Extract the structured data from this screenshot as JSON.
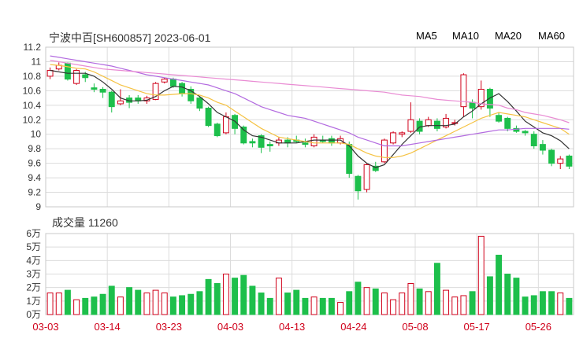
{
  "title": "宁波中百[SH600857] 2023-06-01",
  "volume_title_prefix": "成交量",
  "volume_value": "11260",
  "legend": [
    {
      "label": "MA5",
      "color": "#333333"
    },
    {
      "label": "MA10",
      "color": "#f5c242"
    },
    {
      "label": "MA20",
      "color": "#b36be0"
    },
    {
      "label": "MA60",
      "color": "#e98bd3"
    }
  ],
  "colors": {
    "up": "#d0021b",
    "down": "#1dbf4b",
    "grid": "#dcdcdc",
    "axis_text": "#333333",
    "date_text": "#d0021b"
  },
  "chart_data": [
    {
      "type": "candlestick",
      "title": "宁波中百[SH600857] 2023-06-01",
      "ylim": [
        9,
        11.2
      ],
      "y_ticks": [
        "11.2",
        "11",
        "10.8",
        "10.6",
        "10.4",
        "10.2",
        "10",
        "9.8",
        "9.6",
        "9.4",
        "9.2",
        "9"
      ],
      "x_tick_labels": [
        "03-03",
        "03-14",
        "03-23",
        "04-03",
        "04-13",
        "04-24",
        "05-08",
        "05-17",
        "05-26"
      ],
      "x_tick_index": [
        0,
        7,
        14,
        21,
        28,
        35,
        42,
        49,
        56
      ],
      "candles": [
        [
          10.8,
          10.88,
          10.92,
          10.76
        ],
        [
          10.9,
          10.95,
          10.99,
          10.88
        ],
        [
          10.98,
          10.76,
          10.99,
          10.74
        ],
        [
          10.7,
          10.88,
          10.9,
          10.68
        ],
        [
          10.82,
          10.78,
          10.86,
          10.72
        ],
        [
          10.64,
          10.62,
          10.7,
          10.58
        ],
        [
          10.62,
          10.58,
          10.65,
          10.5
        ],
        [
          10.58,
          10.38,
          10.6,
          10.3
        ],
        [
          10.42,
          10.46,
          10.62,
          10.4
        ],
        [
          10.5,
          10.44,
          10.54,
          10.36
        ],
        [
          10.5,
          10.46,
          10.54,
          10.42
        ],
        [
          10.46,
          10.5,
          10.53,
          10.42
        ],
        [
          10.48,
          10.7,
          10.72,
          10.47
        ],
        [
          10.72,
          10.76,
          10.78,
          10.7
        ],
        [
          10.76,
          10.66,
          10.78,
          10.64
        ],
        [
          10.7,
          10.56,
          10.72,
          10.52
        ],
        [
          10.62,
          10.46,
          10.66,
          10.42
        ],
        [
          10.5,
          10.36,
          10.52,
          10.32
        ],
        [
          10.36,
          10.12,
          10.38,
          10.1
        ],
        [
          10.14,
          9.98,
          10.16,
          9.96
        ],
        [
          10.02,
          10.24,
          10.3,
          10.0
        ],
        [
          10.26,
          10.08,
          10.28,
          10.0
        ],
        [
          10.1,
          9.88,
          10.12,
          9.86
        ],
        [
          9.9,
          9.88,
          9.94,
          9.82
        ],
        [
          9.98,
          9.82,
          10.0,
          9.74
        ],
        [
          9.86,
          9.84,
          9.9,
          9.76
        ],
        [
          9.88,
          9.92,
          9.96,
          9.84
        ],
        [
          9.92,
          9.88,
          9.96,
          9.82
        ],
        [
          9.92,
          9.9,
          9.98,
          9.88
        ],
        [
          9.88,
          9.86,
          9.94,
          9.82
        ],
        [
          9.84,
          9.96,
          10.0,
          9.82
        ],
        [
          9.92,
          9.9,
          9.98,
          9.88
        ],
        [
          9.94,
          9.88,
          9.98,
          9.84
        ],
        [
          9.88,
          9.94,
          9.98,
          9.86
        ],
        [
          9.86,
          9.46,
          9.9,
          9.4
        ],
        [
          9.42,
          9.22,
          9.44,
          9.1
        ],
        [
          9.24,
          9.58,
          9.6,
          9.2
        ],
        [
          9.56,
          9.5,
          9.62,
          9.48
        ],
        [
          9.62,
          9.92,
          9.94,
          9.6
        ],
        [
          9.88,
          10.02,
          10.04,
          9.86
        ],
        [
          10.0,
          10.02,
          10.04,
          9.96
        ],
        [
          10.04,
          10.2,
          10.44,
          10.02
        ],
        [
          10.18,
          10.04,
          10.22,
          10.0
        ],
        [
          10.12,
          10.2,
          10.24,
          10.1
        ],
        [
          10.18,
          10.08,
          10.22,
          10.04
        ],
        [
          10.1,
          10.22,
          10.28,
          10.08
        ],
        [
          10.16,
          10.16,
          10.2,
          10.12
        ],
        [
          10.38,
          10.82,
          10.84,
          10.24
        ],
        [
          10.44,
          10.36,
          10.48,
          10.22
        ],
        [
          10.38,
          10.62,
          10.74,
          10.34
        ],
        [
          10.62,
          10.36,
          10.64,
          10.24
        ],
        [
          10.26,
          10.18,
          10.3,
          10.16
        ],
        [
          10.22,
          10.08,
          10.24,
          10.04
        ],
        [
          10.08,
          10.04,
          10.12,
          10.02
        ],
        [
          10.04,
          10.02,
          10.06,
          9.98
        ],
        [
          10.0,
          9.84,
          10.04,
          9.8
        ],
        [
          9.86,
          9.78,
          9.92,
          9.72
        ],
        [
          9.78,
          9.6,
          9.8,
          9.56
        ],
        [
          9.6,
          9.66,
          9.7,
          9.52
        ],
        [
          9.7,
          9.56,
          9.72,
          9.52
        ]
      ],
      "moving_averages": [
        {
          "name": "MA5",
          "values": [
            10.88,
            10.86,
            10.84,
            10.84,
            10.84,
            10.8,
            10.72,
            10.62,
            10.5,
            10.46,
            10.46,
            10.47,
            10.52,
            10.6,
            10.66,
            10.65,
            10.6,
            10.52,
            10.42,
            10.3,
            10.24,
            10.18,
            10.06,
            9.98,
            9.96,
            9.92,
            9.88,
            9.88,
            9.88,
            9.9,
            9.92,
            9.92,
            9.92,
            9.92,
            9.84,
            9.7,
            9.6,
            9.54,
            9.58,
            9.72,
            9.86,
            9.98,
            10.1,
            10.12,
            10.12,
            10.12,
            10.14,
            10.24,
            10.32,
            10.42,
            10.5,
            10.56,
            10.45,
            10.32,
            10.18,
            10.1,
            10.02,
            9.98,
            9.91,
            9.8
          ]
        },
        {
          "name": "MA10",
          "values": [
            10.96,
            10.95,
            10.93,
            10.91,
            10.9,
            10.86,
            10.8,
            10.74,
            10.68,
            10.64,
            10.6,
            10.56,
            10.54,
            10.54,
            10.55,
            10.56,
            10.56,
            10.54,
            10.5,
            10.44,
            10.4,
            10.32,
            10.24,
            10.16,
            10.08,
            10.02,
            9.96,
            9.94,
            9.92,
            9.9,
            9.88,
            9.88,
            9.88,
            9.88,
            9.86,
            9.8,
            9.74,
            9.7,
            9.68,
            9.68,
            9.7,
            9.74,
            9.8,
            9.86,
            9.92,
            9.98,
            10.04,
            10.1,
            10.16,
            10.22,
            10.26,
            10.3,
            10.28,
            10.26,
            10.24,
            10.2,
            10.16,
            10.12,
            10.08,
            10.0
          ]
        },
        {
          "name": "MA20",
          "values": [
            11.08,
            11.06,
            11.04,
            11.02,
            11.0,
            10.98,
            10.96,
            10.94,
            10.91,
            10.88,
            10.85,
            10.82,
            10.8,
            10.78,
            10.76,
            10.74,
            10.72,
            10.7,
            10.68,
            10.64,
            10.6,
            10.56,
            10.5,
            10.44,
            10.38,
            10.34,
            10.3,
            10.26,
            10.24,
            10.22,
            10.18,
            10.14,
            10.1,
            10.06,
            10.02,
            9.96,
            9.92,
            9.88,
            9.84,
            9.84,
            9.84,
            9.86,
            9.88,
            9.9,
            9.92,
            9.94,
            9.96,
            9.98,
            10.0,
            10.02,
            10.04,
            10.06,
            10.06,
            10.07,
            10.08,
            10.08,
            10.08,
            10.08,
            10.08,
            10.07
          ]
        },
        {
          "name": "MA60",
          "values": [
            11.02,
            11.0,
            10.98,
            10.96,
            10.94,
            10.92,
            10.9,
            10.89,
            10.88,
            10.87,
            10.86,
            10.85,
            10.84,
            10.83,
            10.82,
            10.81,
            10.8,
            10.79,
            10.78,
            10.77,
            10.76,
            10.75,
            10.74,
            10.73,
            10.72,
            10.71,
            10.7,
            10.69,
            10.68,
            10.67,
            10.66,
            10.65,
            10.64,
            10.63,
            10.62,
            10.61,
            10.6,
            10.59,
            10.58,
            10.56,
            10.54,
            10.53,
            10.52,
            10.5,
            10.48,
            10.47,
            10.46,
            10.45,
            10.44,
            10.42,
            10.41,
            10.4,
            10.36,
            10.34,
            10.3,
            10.28,
            10.26,
            10.23,
            10.2,
            10.16
          ]
        }
      ]
    },
    {
      "type": "bar",
      "title": "成交量 11260",
      "ylim": [
        0,
        60000
      ],
      "y_ticks": [
        "6万",
        "5万",
        "4万",
        "3万",
        "2万",
        "1万",
        "0万"
      ],
      "values": [
        16000,
        16000,
        18000,
        11000,
        12000,
        13000,
        15000,
        21000,
        13000,
        20000,
        18000,
        16000,
        18000,
        16000,
        13000,
        14000,
        15000,
        17000,
        26000,
        23000,
        30000,
        27000,
        29000,
        21000,
        16000,
        12000,
        27000,
        16000,
        18000,
        12000,
        13000,
        12000,
        12000,
        9000,
        17000,
        24000,
        20000,
        19000,
        16000,
        11000,
        16000,
        23000,
        19000,
        17000,
        38000,
        18000,
        13000,
        14000,
        17000,
        58000,
        28000,
        44000,
        30000,
        27000,
        13000,
        14000,
        17000,
        17000,
        16000,
        12000
      ]
    }
  ]
}
